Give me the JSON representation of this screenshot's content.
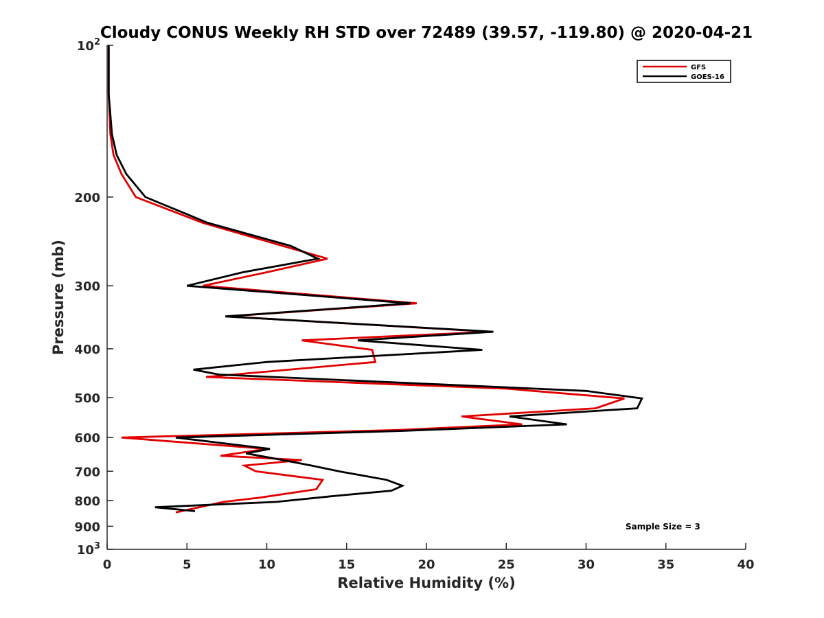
{
  "chart_data": {
    "type": "line",
    "title": "Cloudy CONUS Weekly RH STD over 72489 (39.57, -119.80) @ 2020-04-21",
    "xlabel": "Relative Humidity (%)",
    "ylabel": "Pressure (mb)",
    "xlim": [
      0,
      40
    ],
    "ylim": [
      100,
      1000
    ],
    "y_scale": "log",
    "y_reversed": true,
    "grid": false,
    "legend_placement": "top-right",
    "x_ticks": [
      0,
      5,
      10,
      15,
      20,
      25,
      30,
      35,
      40
    ],
    "y_ticks": [
      {
        "value": 100,
        "base": "10",
        "exp": "2"
      },
      {
        "value": 200,
        "label": "200"
      },
      {
        "value": 300,
        "label": "300"
      },
      {
        "value": 400,
        "label": "400"
      },
      {
        "value": 500,
        "label": "500"
      },
      {
        "value": 600,
        "label": "600"
      },
      {
        "value": 700,
        "label": "700"
      },
      {
        "value": 800,
        "label": "800"
      },
      {
        "value": 900,
        "label": "900"
      },
      {
        "value": 1000,
        "base": "10",
        "exp": "3"
      }
    ],
    "annotation": "Sample Size = 3",
    "series": [
      {
        "name": "GFS",
        "color": "#e00000",
        "points": [
          [
            0.1,
            100
          ],
          [
            0.1,
            125
          ],
          [
            0.2,
            150
          ],
          [
            0.4,
            165
          ],
          [
            0.9,
            180
          ],
          [
            1.8,
            200
          ],
          [
            6.0,
            225
          ],
          [
            11.0,
            250
          ],
          [
            13.8,
            265
          ],
          [
            10.0,
            282
          ],
          [
            6.0,
            300
          ],
          [
            19.4,
            325
          ],
          [
            7.5,
            345
          ],
          [
            24.0,
            370
          ],
          [
            12.2,
            385
          ],
          [
            16.6,
            402
          ],
          [
            16.8,
            425
          ],
          [
            6.2,
            455
          ],
          [
            25.0,
            480
          ],
          [
            32.4,
            502
          ],
          [
            30.6,
            525
          ],
          [
            22.2,
            545
          ],
          [
            26.0,
            565
          ],
          [
            18.0,
            580
          ],
          [
            0.9,
            600
          ],
          [
            10.0,
            632
          ],
          [
            7.1,
            652
          ],
          [
            12.2,
            665
          ],
          [
            8.6,
            682
          ],
          [
            9.3,
            700
          ],
          [
            13.5,
            728
          ],
          [
            13.1,
            760
          ],
          [
            9.5,
            790
          ],
          [
            7.3,
            805
          ],
          [
            4.3,
            845
          ]
        ]
      },
      {
        "name": "GOES-16",
        "color": "#000000",
        "points": [
          [
            0.1,
            100
          ],
          [
            0.1,
            125
          ],
          [
            0.3,
            150
          ],
          [
            0.6,
            165
          ],
          [
            1.2,
            180
          ],
          [
            2.4,
            200
          ],
          [
            6.3,
            225
          ],
          [
            11.5,
            250
          ],
          [
            13.2,
            265
          ],
          [
            8.5,
            282
          ],
          [
            5.0,
            300
          ],
          [
            19.0,
            325
          ],
          [
            7.4,
            345
          ],
          [
            24.2,
            370
          ],
          [
            15.7,
            385
          ],
          [
            23.5,
            402
          ],
          [
            10.0,
            425
          ],
          [
            5.4,
            440
          ],
          [
            7.0,
            450
          ],
          [
            30.0,
            485
          ],
          [
            33.5,
            502
          ],
          [
            33.2,
            525
          ],
          [
            25.2,
            545
          ],
          [
            28.8,
            565
          ],
          [
            18.5,
            582
          ],
          [
            4.3,
            600
          ],
          [
            10.2,
            632
          ],
          [
            8.7,
            645
          ],
          [
            11.0,
            665
          ],
          [
            12.8,
            682
          ],
          [
            14.5,
            700
          ],
          [
            17.5,
            728
          ],
          [
            18.5,
            748
          ],
          [
            17.8,
            765
          ],
          [
            14.0,
            785
          ],
          [
            10.6,
            805
          ],
          [
            3.0,
            825
          ],
          [
            5.5,
            840
          ]
        ]
      }
    ]
  }
}
